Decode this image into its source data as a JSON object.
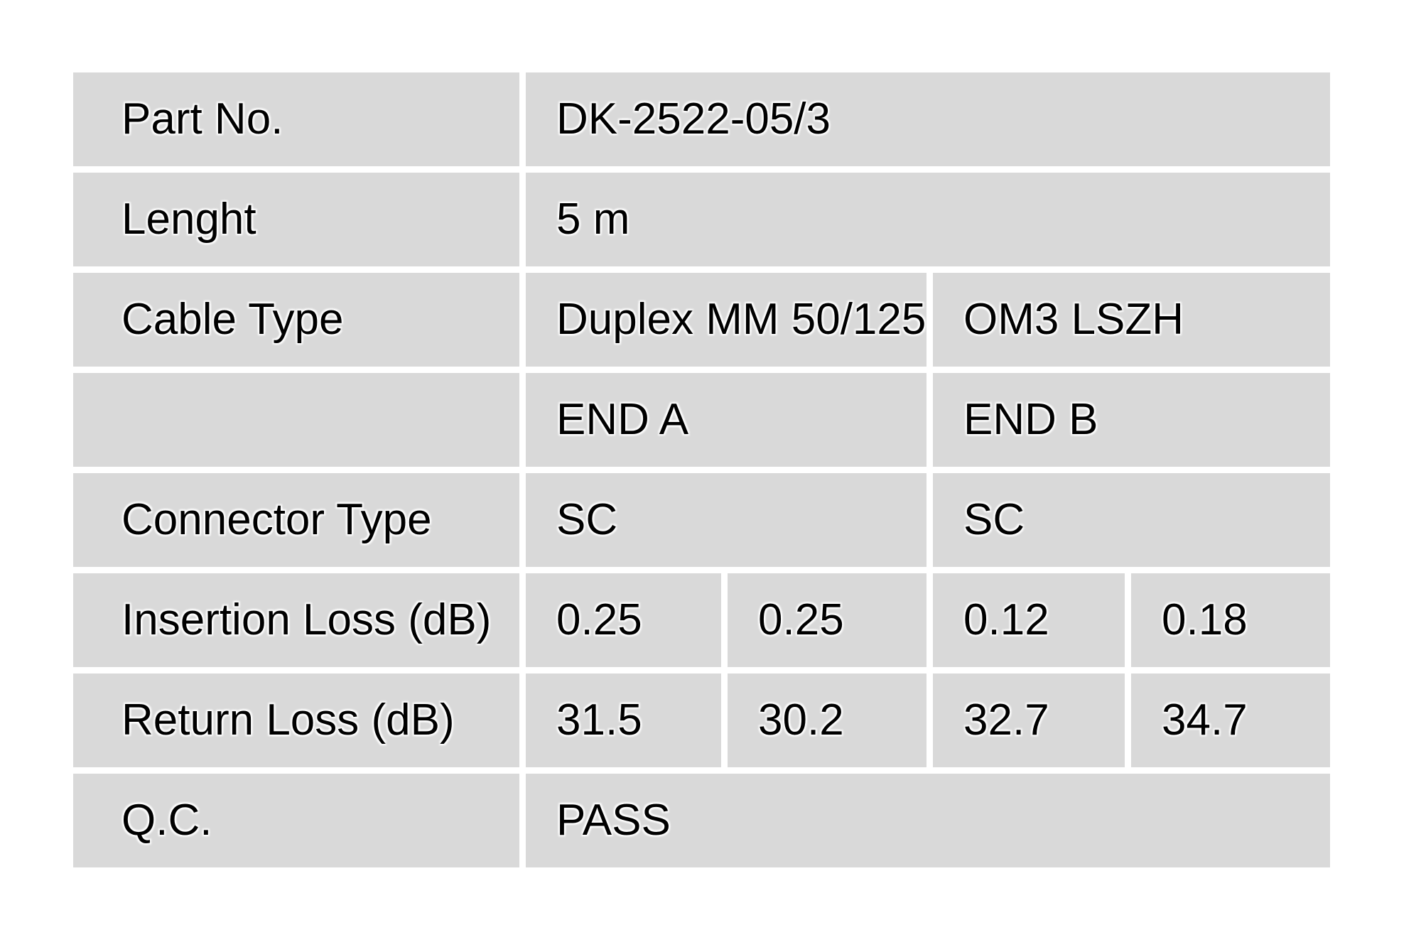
{
  "colors": {
    "cell_background": "#d9d9d9",
    "page_background": "#ffffff",
    "text": "#000000"
  },
  "table": {
    "rows": [
      {
        "label": "Part No.",
        "cells": [
          {
            "text": "DK-2522-05/3"
          }
        ]
      },
      {
        "label": "Lenght",
        "cells": [
          {
            "text": "5 m"
          }
        ]
      },
      {
        "label": "Cable Type",
        "cells": [
          {
            "text": "Duplex MM 50/125"
          },
          {
            "text": "OM3 LSZH"
          }
        ]
      },
      {
        "label": "",
        "cells": [
          {
            "text": "END A"
          },
          {
            "text": "END B"
          }
        ]
      },
      {
        "label": "Connector Type",
        "cells": [
          {
            "text": "SC"
          },
          {
            "text": "SC"
          }
        ]
      },
      {
        "label": "Insertion Loss (dB)",
        "cells": [
          {
            "text": "0.25"
          },
          {
            "text": "0.25"
          },
          {
            "text": "0.12"
          },
          {
            "text": "0.18"
          }
        ]
      },
      {
        "label": "Return Loss (dB)",
        "cells": [
          {
            "text": "31.5"
          },
          {
            "text": "30.2"
          },
          {
            "text": "32.7"
          },
          {
            "text": "34.7"
          }
        ]
      },
      {
        "label": "Q.C.",
        "cells": [
          {
            "text": "PASS"
          }
        ]
      }
    ]
  }
}
